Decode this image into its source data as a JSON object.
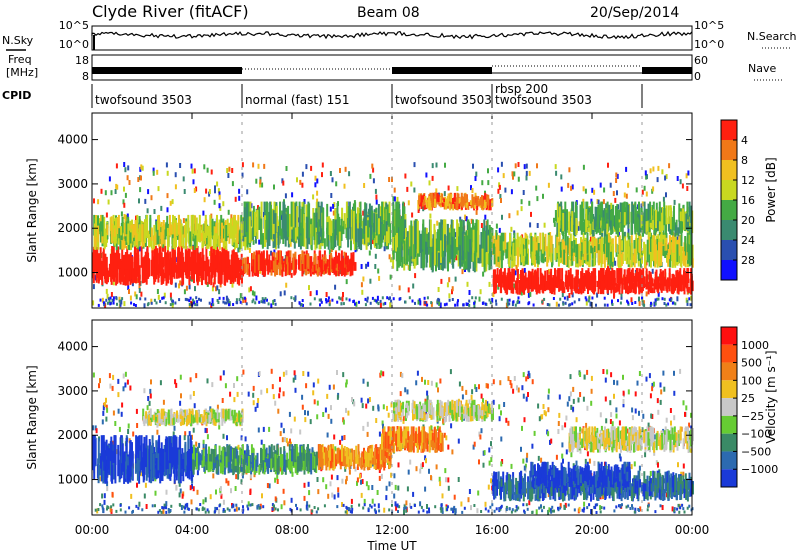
{
  "header": {
    "station": "Clyde River (fitACF)",
    "beam": "Beam 08",
    "date": "20/Sep/2014"
  },
  "summary": {
    "nsky_label": "N.Sky",
    "nsky_ticks": [
      "10^5",
      "10^0"
    ],
    "nsearch_label": "N.Search",
    "nsearch_ticks": [
      "10^5",
      "10^0"
    ],
    "freq_label_1": "Freq",
    "freq_label_2": "[MHz]",
    "freq_ticks": [
      "18",
      "8"
    ],
    "nave_label": "Nave",
    "nave_ticks": [
      "60",
      "0"
    ],
    "cpid_label": "CPID",
    "cpid_segments": [
      {
        "name": "twofsound 3503",
        "start": 0,
        "end": 6
      },
      {
        "name": "normal (fast) 151",
        "start": 6,
        "end": 12
      },
      {
        "name": "twofsound 3503",
        "start": 12,
        "end": 16
      },
      {
        "name": "rbsp 200",
        "start": 16,
        "end": 16
      },
      {
        "name": "twofsound 3503",
        "start": 16,
        "end": 22
      }
    ]
  },
  "chart_data": [
    {
      "type": "heatmap",
      "quantity": "Power",
      "ylabel": "Slant Range [km]",
      "xlabel": "Time UT",
      "xlim": [
        0,
        24
      ],
      "ylim": [
        200,
        4600
      ],
      "xticks": [
        "00:00",
        "04:00",
        "08:00",
        "12:00",
        "16:00",
        "20:00",
        "00:00"
      ],
      "yticks": [
        1000,
        2000,
        3000,
        4000
      ],
      "colorbar": {
        "label": "Power [dB]",
        "ticks": [
          "4",
          "8",
          "12",
          "16",
          "20",
          "24",
          "28"
        ],
        "colors": [
          "#1010ff",
          "#2a4fb0",
          "#3a8a70",
          "#44aa44",
          "#c8d820",
          "#f0c020",
          "#f07818",
          "#ff2010"
        ]
      },
      "bands": [
        {
          "t0": 0.0,
          "t1": 6.0,
          "r0": 700,
          "r1": 1600,
          "level": 8
        },
        {
          "t0": 6.0,
          "t1": 10.5,
          "r0": 900,
          "r1": 1500,
          "level": 7
        },
        {
          "t0": 0.0,
          "t1": 6.0,
          "r0": 1500,
          "r1": 2300,
          "level": 4
        },
        {
          "t0": 6.0,
          "t1": 12.5,
          "r0": 1500,
          "r1": 2600,
          "level": 3
        },
        {
          "t0": 13.0,
          "t1": 16.0,
          "r0": 2400,
          "r1": 2800,
          "level": 6
        },
        {
          "t0": 12.0,
          "t1": 16.0,
          "r0": 1000,
          "r1": 2200,
          "level": 3
        },
        {
          "t0": 16.0,
          "t1": 24.0,
          "r0": 500,
          "r1": 1100,
          "level": 8
        },
        {
          "t0": 16.0,
          "t1": 24.0,
          "r0": 1100,
          "r1": 1900,
          "level": 4
        },
        {
          "t0": 18.5,
          "t1": 24.0,
          "r0": 1800,
          "r1": 2600,
          "level": 3
        }
      ]
    },
    {
      "type": "heatmap",
      "quantity": "Velocity",
      "ylabel": "Slant Range [km]",
      "xlabel": "Time UT",
      "xlim": [
        0,
        24
      ],
      "ylim": [
        200,
        4600
      ],
      "xticks": [
        "00:00",
        "04:00",
        "08:00",
        "12:00",
        "16:00",
        "20:00",
        "00:00"
      ],
      "yticks": [
        1000,
        2000,
        3000,
        4000
      ],
      "colorbar": {
        "label": "Velocity [m s⁻¹]",
        "ticks": [
          "1000",
          "500",
          "100",
          "25",
          "−25",
          "−100",
          "−500",
          "−1000"
        ],
        "colors": [
          "#1a3ad8",
          "#2c6ab0",
          "#3a8a66",
          "#66cc33",
          "#c8c8c8",
          "#f0c020",
          "#f08018",
          "#ff5010",
          "#ff1010"
        ]
      },
      "bands": [
        {
          "t0": 0.0,
          "t1": 4.0,
          "r0": 900,
          "r1": 2000,
          "level": 0
        },
        {
          "t0": 4.0,
          "t1": 9.0,
          "r0": 1100,
          "r1": 1800,
          "level": 2
        },
        {
          "t0": 9.0,
          "t1": 12.0,
          "r0": 1200,
          "r1": 1800,
          "level": 6
        },
        {
          "t0": 2.0,
          "t1": 6.0,
          "r0": 2200,
          "r1": 2600,
          "level": 4
        },
        {
          "t0": 12.0,
          "t1": 16.0,
          "r0": 2300,
          "r1": 2800,
          "level": 4
        },
        {
          "t0": 11.5,
          "t1": 14.0,
          "r0": 1600,
          "r1": 2200,
          "level": 6
        },
        {
          "t0": 16.0,
          "t1": 24.0,
          "r0": 500,
          "r1": 1200,
          "level": 1
        },
        {
          "t0": 17.5,
          "t1": 21.5,
          "r0": 800,
          "r1": 1400,
          "level": 0
        },
        {
          "t0": 19.0,
          "t1": 24.0,
          "r0": 1600,
          "r1": 2200,
          "level": 4
        }
      ]
    }
  ]
}
